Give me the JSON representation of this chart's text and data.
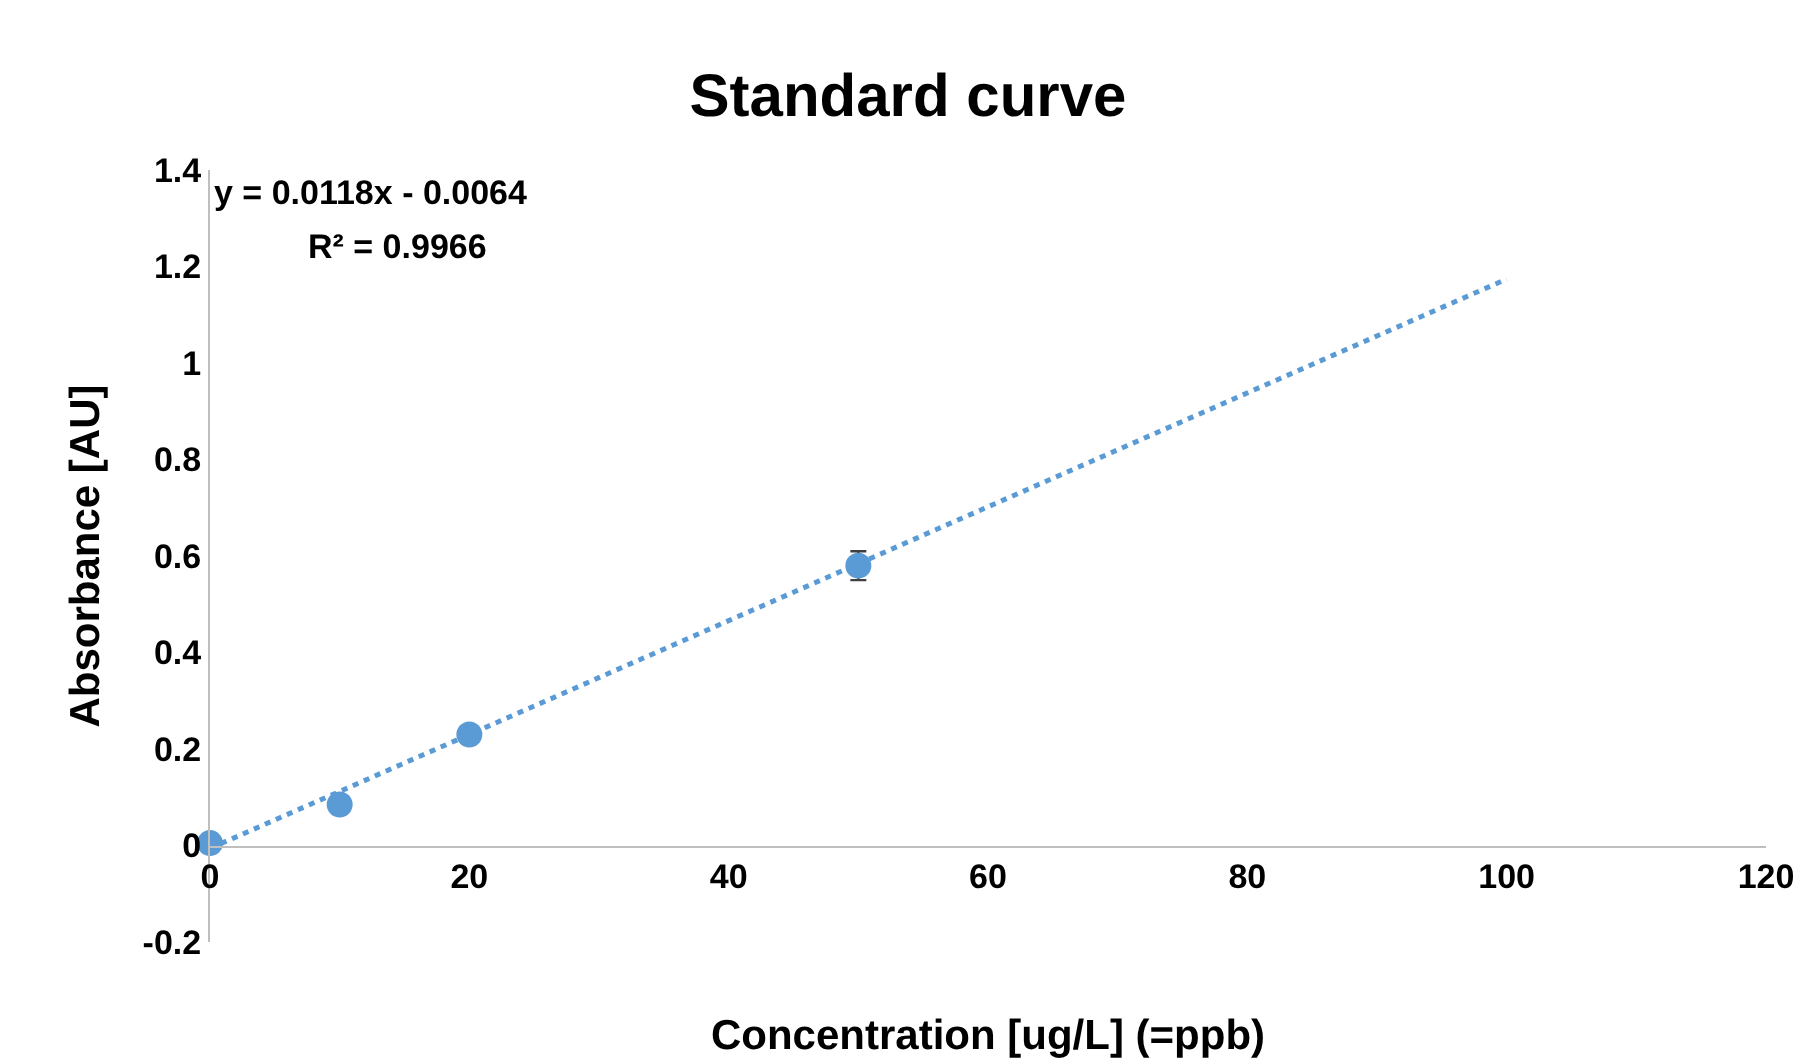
{
  "chart_data": {
    "type": "scatter",
    "title": "Standard curve",
    "xlabel": "Concentration [ug/L] (=ppb)",
    "ylabel": "Absorbance [AU]",
    "x": [
      0,
      10,
      20,
      50
    ],
    "series": [
      {
        "color": "#5b9bd5",
        "values": [
          0.005,
          0.085,
          0.23,
          0.58
        ],
        "errors": [
          null,
          null,
          null,
          0.03
        ],
        "marker": "circle"
      },
      {
        "type": "line",
        "color": "#5b9bd5",
        "x": [
          0,
          100
        ],
        "values": [
          -0.006,
          1.174
        ],
        "marker": "none",
        "line_style": "dotted"
      }
    ],
    "xlim": [
      0,
      120
    ],
    "xticks": [
      0,
      20,
      40,
      60,
      80,
      100,
      120
    ],
    "ylim": [
      -0.2,
      1.4
    ],
    "yticks": [
      -0.2,
      0,
      0.2,
      0.4,
      0.6,
      0.8,
      1,
      1.2,
      1.4
    ],
    "grid": false,
    "annotations": [
      "y = 0.0118x - 0.0064",
      "R² = 0.9966"
    ]
  }
}
